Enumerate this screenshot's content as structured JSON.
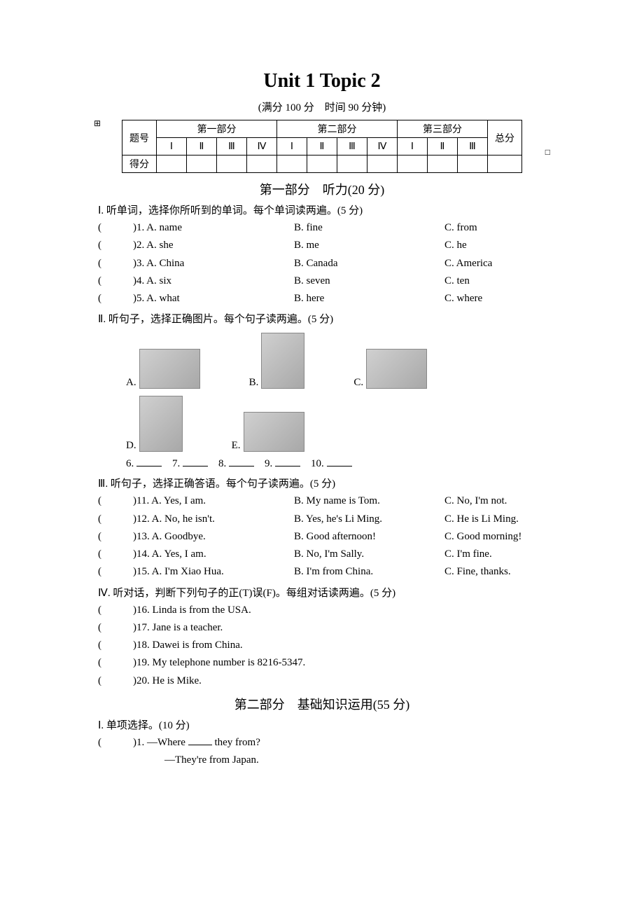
{
  "title": "Unit 1 Topic 2",
  "subtitle_full": "(满分 100 分 时间 90 分钟)",
  "score_table": {
    "row_label": "题号",
    "score_label": "得分",
    "parts": [
      "第一部分",
      "第二部分",
      "第三部分"
    ],
    "total": "总分",
    "sub1": [
      "Ⅰ",
      "Ⅱ",
      "Ⅲ",
      "Ⅳ"
    ],
    "sub2": [
      "Ⅰ",
      "Ⅱ",
      "Ⅲ",
      "Ⅳ"
    ],
    "sub3": [
      "Ⅰ",
      "Ⅱ",
      "Ⅲ"
    ]
  },
  "part1_title": "第一部分 听力(20 分)",
  "sec1": {
    "instr": "Ⅰ. 听单词，选择你所听到的单词。每个单词读两遍。(5 分)",
    "rows": [
      {
        "n": "1",
        "a": "A. name",
        "b": "B. fine",
        "c": "C. from"
      },
      {
        "n": "2",
        "a": "A. she",
        "b": "B. me",
        "c": "C. he"
      },
      {
        "n": "3",
        "a": "A. China",
        "b": "B. Canada",
        "c": "C. America"
      },
      {
        "n": "4",
        "a": "A. six",
        "b": "B. seven",
        "c": "C. ten"
      },
      {
        "n": "5",
        "a": "A. what",
        "b": "B. here",
        "c": "C. where"
      }
    ]
  },
  "sec2": {
    "instr": "Ⅱ. 听句子，选择正确图片。每个句子读两遍。(5 分)",
    "img_labels": [
      "A.",
      "B.",
      "C.",
      "D.",
      "E."
    ],
    "blank_nums": [
      "6.",
      "7.",
      "8.",
      "9.",
      "10."
    ]
  },
  "sec3": {
    "instr": "Ⅲ. 听句子，选择正确答语。每个句子读两遍。(5 分)",
    "rows": [
      {
        "n": "11",
        "a": "A. Yes, I am.",
        "b": "B. My name is Tom.",
        "c": "C. No, I'm not."
      },
      {
        "n": "12",
        "a": "A. No, he isn't.",
        "b": "B. Yes, he's Li Ming.",
        "c": "C. He is Li Ming."
      },
      {
        "n": "13",
        "a": "A. Goodbye.",
        "b": "B. Good afternoon!",
        "c": "C. Good morning!"
      },
      {
        "n": "14",
        "a": "A. Yes, I am.",
        "b": "B. No, I'm Sally.",
        "c": "C. I'm fine."
      },
      {
        "n": "15",
        "a": "A. I'm Xiao Hua.",
        "b": "B. I'm from China.",
        "c": "C. Fine, thanks."
      }
    ]
  },
  "sec4": {
    "instr": "Ⅳ. 听对话，判断下列句子的正(T)误(F)。每组对话读两遍。(5 分)",
    "rows": [
      {
        "n": "16",
        "t": "Linda is from the USA."
      },
      {
        "n": "17",
        "t": "Jane is a teacher."
      },
      {
        "n": "18",
        "t": "Dawei is from China."
      },
      {
        "n": "19",
        "t": "My telephone number is 8216-5347."
      },
      {
        "n": "20",
        "t": "He is Mike."
      }
    ]
  },
  "part2_title": "第二部分 基础知识运用(55 分)",
  "sec5": {
    "instr": "Ⅰ. 单项选择。(10 分)",
    "q1_pre": ")1. —Where ",
    "q1_post": " they from?",
    "q1_ans": "—They're from Japan."
  }
}
